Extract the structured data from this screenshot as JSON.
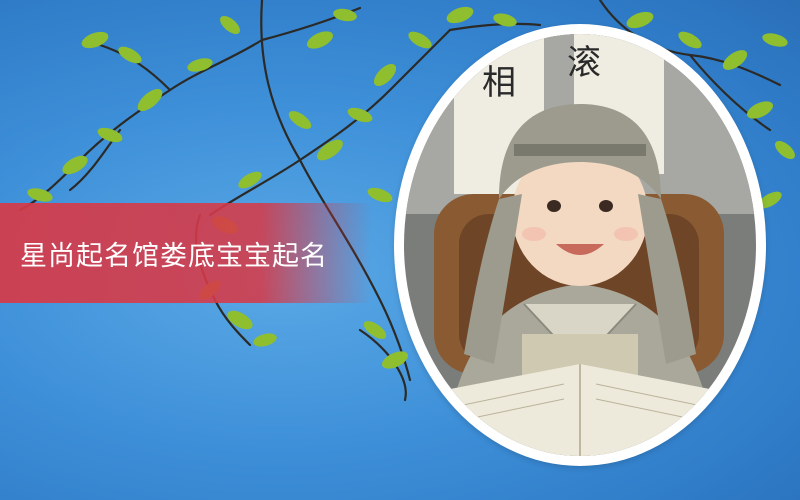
{
  "banner": {
    "title": "星尚起名馆娄底宝宝起名"
  },
  "photo": {
    "scroll_characters": [
      "滚",
      "相"
    ]
  },
  "colors": {
    "sky": "#3d8fd8",
    "title_band": "#d63a48",
    "leaf": "#8fbf2f",
    "branch": "#2b2a26",
    "frame": "#ffffff"
  }
}
